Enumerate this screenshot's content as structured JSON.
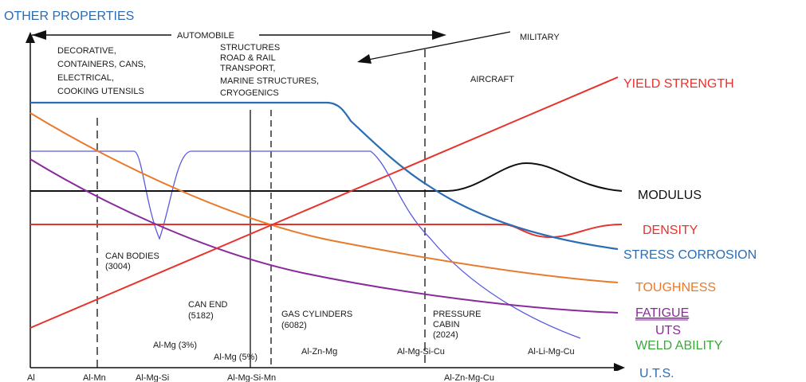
{
  "title": "OTHER PROPERTIES",
  "x_axis_label": "U.T.S.",
  "arrows": {
    "automobile": "AUTOMOBILE",
    "military": "MILITARY"
  },
  "regions": {
    "decorative": [
      "DECORATIVE,",
      "CONTAINERS, CANS,",
      "ELECTRICAL,",
      "COOKING UTENSILS"
    ],
    "structures": [
      "STRUCTURES",
      "ROAD & RAIL",
      "TRANSPORT,",
      "MARINE STRUCTURES,",
      "CRYOGENICS"
    ],
    "aircraft": "AIRCRAFT"
  },
  "applications": {
    "can_bodies": [
      "CAN BODIES",
      "(3004)"
    ],
    "can_end": [
      "CAN END",
      "(5182)"
    ],
    "gas_cylinders": [
      "GAS CYLINDERS",
      "(6082)"
    ],
    "pressure_cabin": [
      "PRESSURE",
      "CABIN",
      "(2024)"
    ]
  },
  "alloys_upper": [
    "Al-Mg (3%)",
    "Al-Mg (5%)",
    "Al-Zn-Mg",
    "Al-Mg-Si-Cu",
    "Al-Li-Mg-Cu"
  ],
  "alloys_axis": [
    "Al",
    "Al-Mn",
    "Al-Mg-Si",
    "Al-Mg-Si-Mn",
    "Al-Zn-Mg-Cu"
  ],
  "curves": {
    "yield_strength": {
      "label": "YIELD STRENGTH",
      "color": "#e8322c"
    },
    "modulus": {
      "label": "MODULUS",
      "color": "#111111"
    },
    "density": {
      "label": "DENSITY",
      "color": "#e8322c"
    },
    "stress_corrosion": {
      "label": "STRESS CORROSION",
      "color": "#2a6db5"
    },
    "toughness": {
      "label": "TOUGHNESS",
      "color": "#e87a2c"
    },
    "fatigue": {
      "label": "FATIGUE",
      "color": "#8a2a9c"
    },
    "uts": {
      "label": "UTS",
      "color": "#8a2a9c"
    },
    "weld_ability": {
      "label": "WELD ABILITY",
      "color": "#3aa83a"
    }
  },
  "colors": {
    "title": "#2a6db5",
    "weld_curve": "#5a5ae0"
  }
}
